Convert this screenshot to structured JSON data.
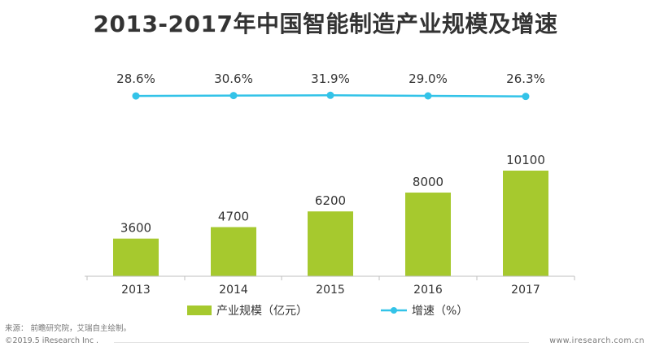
{
  "page": {
    "source": "来源： 前瞻研究院，艾瑞自主绘制。",
    "copyright": "©2019.5 iResearch Inc .",
    "website": "www.iresearch.com.cn"
  },
  "chart_data": {
    "type": "bar",
    "title": "2013-2017年中国智能制造产业规模及增速",
    "categories": [
      "2013",
      "2014",
      "2015",
      "2016",
      "2017"
    ],
    "series": [
      {
        "name": "产业规模（亿元）",
        "type": "bar",
        "values": [
          3600,
          4700,
          6200,
          8000,
          10100
        ],
        "labels": [
          "3600",
          "4700",
          "6200",
          "8000",
          "10100"
        ],
        "color": "#a6c92e"
      },
      {
        "name": "增速（%）",
        "type": "line",
        "values": [
          28.6,
          30.6,
          31.9,
          29.0,
          26.3
        ],
        "labels": [
          "28.6%",
          "30.6%",
          "31.9%",
          "29.0%",
          "26.3%"
        ],
        "color": "#33c3e8"
      }
    ],
    "legend_position": "bottom",
    "grid": false
  }
}
